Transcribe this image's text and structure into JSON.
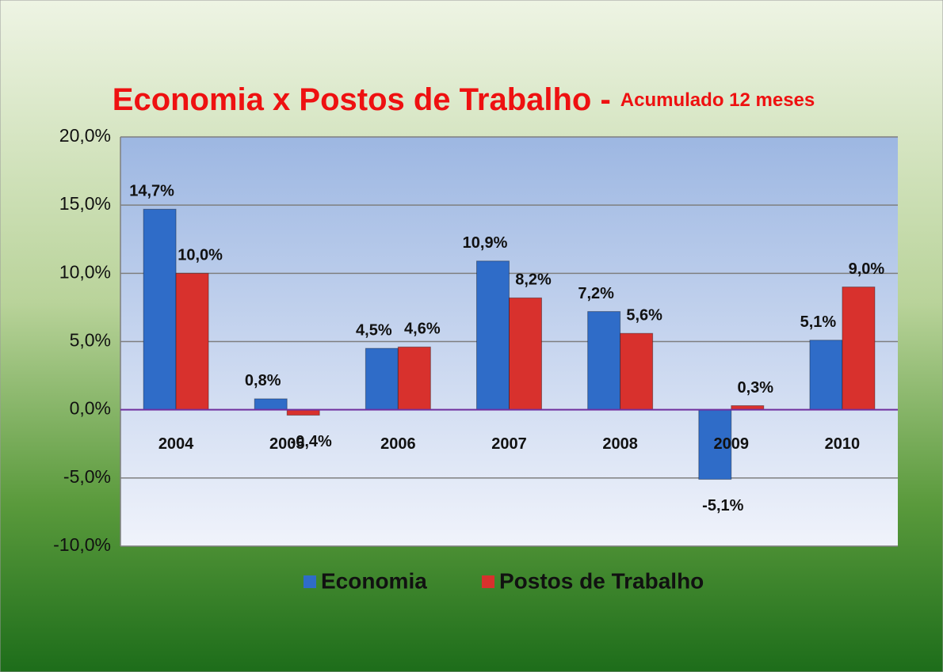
{
  "chart_data": {
    "type": "bar",
    "title": "Economia x Postos de Trabalho -",
    "subtitle": "Acumulado 12 meses",
    "categories": [
      "2004",
      "2005",
      "2006",
      "2007",
      "2008",
      "2009",
      "2010"
    ],
    "series": [
      {
        "name": "Economia",
        "color": "#2f6cc8",
        "values": [
          14.7,
          0.8,
          4.5,
          10.9,
          7.2,
          -5.1,
          5.1
        ],
        "value_labels": [
          "14,7%",
          "0,8%",
          "4,5%",
          "10,9%",
          "7,2%",
          "-5,1%",
          "5,1%"
        ]
      },
      {
        "name": "Postos de Trabalho",
        "color": "#d8312d",
        "values": [
          10.0,
          -0.4,
          4.6,
          8.2,
          5.6,
          0.3,
          9.0
        ],
        "value_labels": [
          "10,0%",
          "-0,4%",
          "4,6%",
          "8,2%",
          "5,6%",
          "0,3%",
          "9,0%"
        ]
      }
    ],
    "ylim": [
      -10,
      20
    ],
    "yticks": [
      {
        "value": -10,
        "label": "-10,0%"
      },
      {
        "value": -5,
        "label": "-5,0%"
      },
      {
        "value": 0,
        "label": "0,0%"
      },
      {
        "value": 5,
        "label": "5,0%"
      },
      {
        "value": 10,
        "label": "10,0%"
      },
      {
        "value": 15,
        "label": "15,0%"
      },
      {
        "value": 20,
        "label": "20,0%"
      }
    ],
    "grid": true,
    "legend": "bottom"
  }
}
